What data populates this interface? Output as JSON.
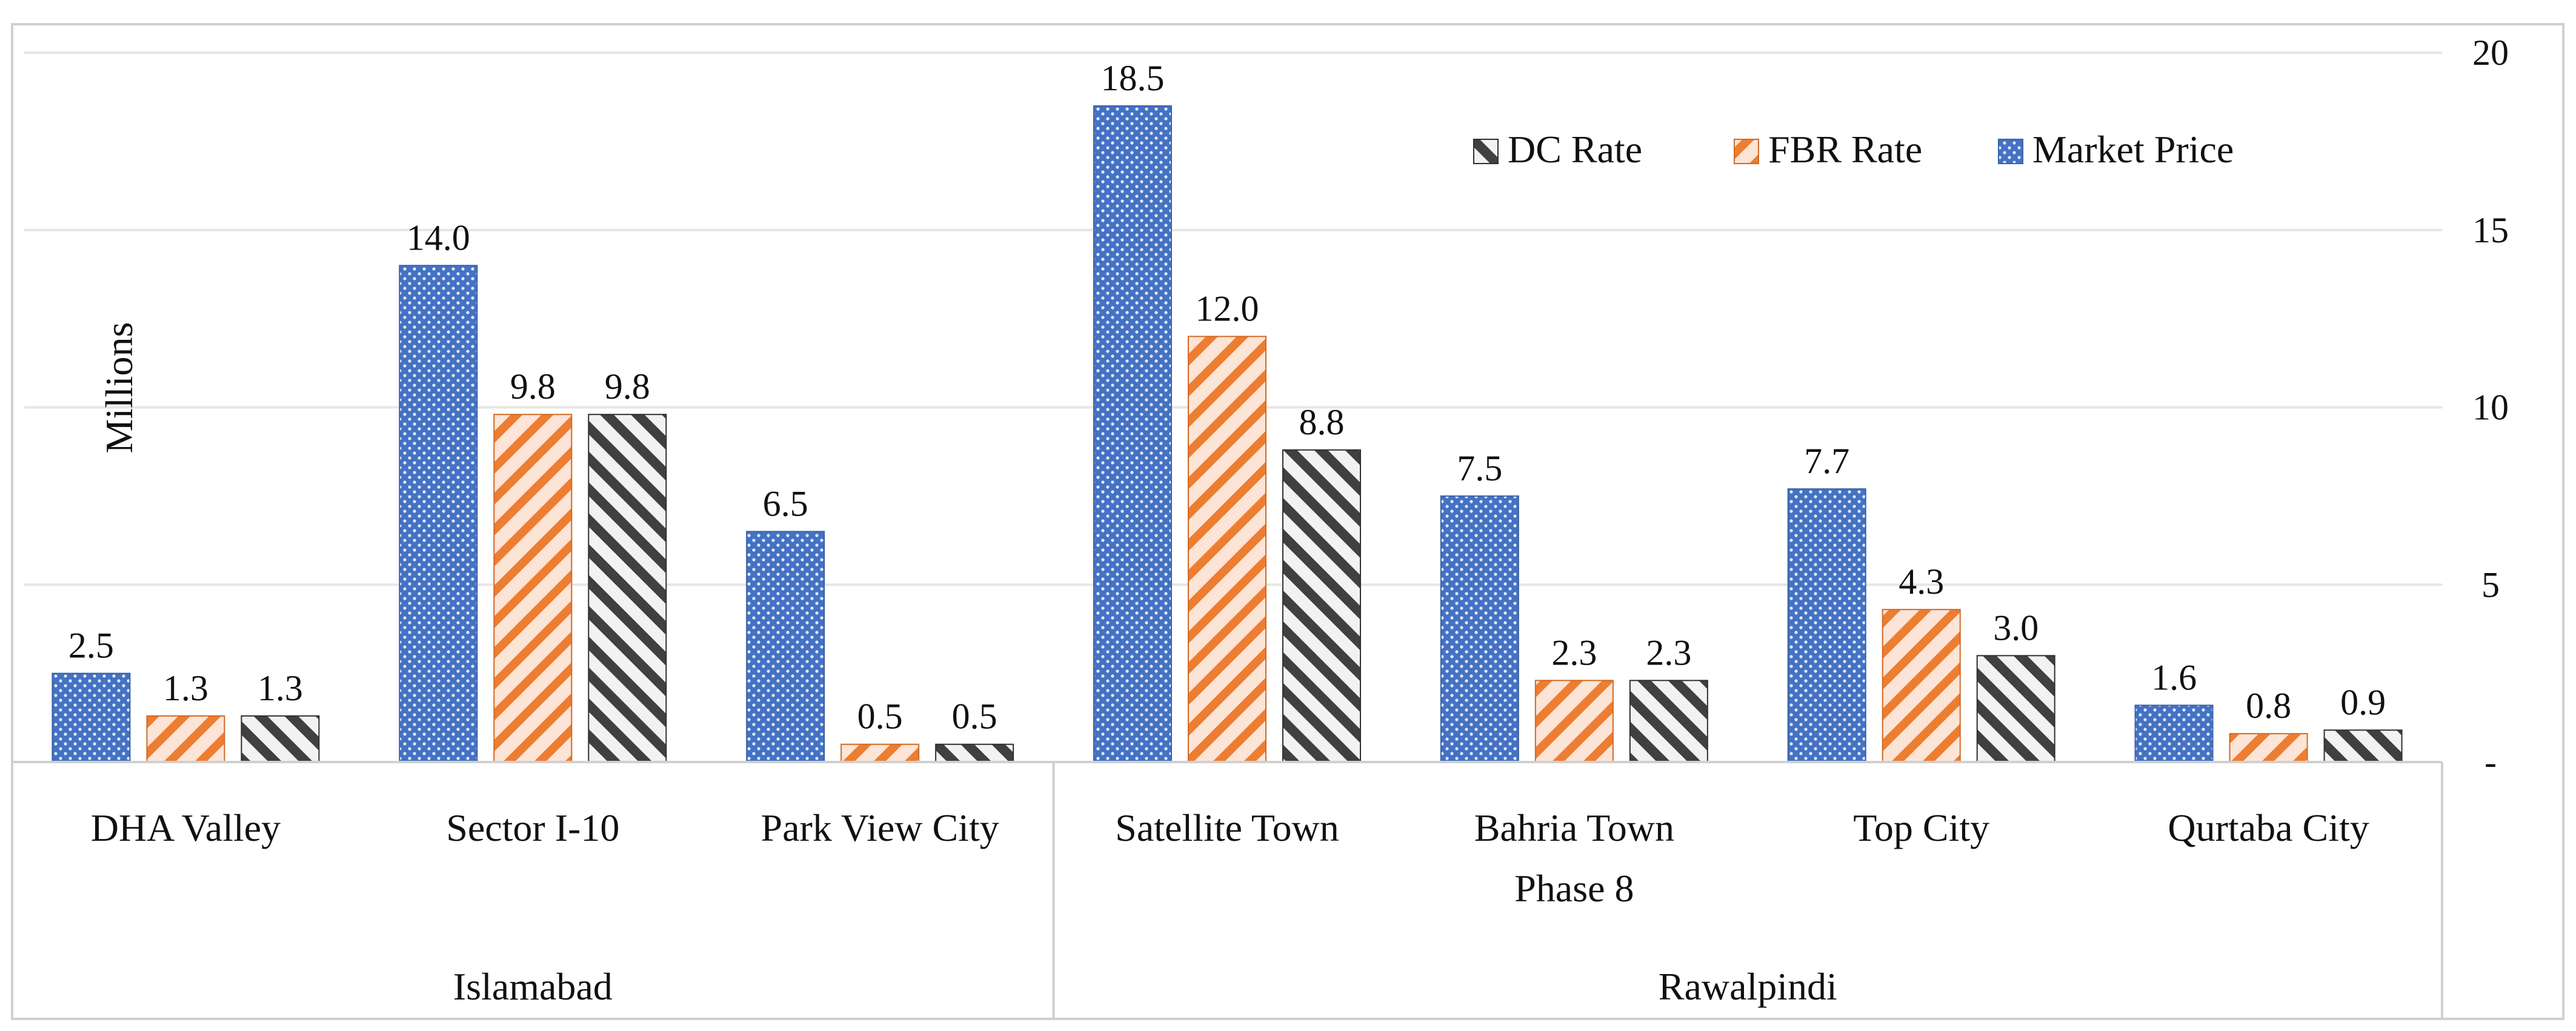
{
  "chart_data": {
    "type": "bar",
    "y_axis_title": "Millions",
    "y_axis_position": "right",
    "ylim": [
      0,
      20
    ],
    "y_ticks": [
      {
        "value": 0,
        "label": "-"
      },
      {
        "value": 5,
        "label": "5"
      },
      {
        "value": 10,
        "label": "10"
      },
      {
        "value": 15,
        "label": "15"
      },
      {
        "value": 20,
        "label": "20"
      }
    ],
    "grid": true,
    "legend_position": "top-right",
    "legend_order": [
      2,
      1,
      0
    ],
    "categories": [
      "DHA Valley",
      "Sector I-10",
      "Park View City",
      "Satellite Town",
      "Bahria Town Phase 8",
      "Top City",
      "Qurtaba City"
    ],
    "category_lines": [
      [
        "DHA Valley"
      ],
      [
        "Sector I-10"
      ],
      [
        "Park View City"
      ],
      [
        "Satellite Town"
      ],
      [
        "Bahria Town",
        "Phase 8"
      ],
      [
        "Top City"
      ],
      [
        "Qurtaba City"
      ]
    ],
    "groups": [
      {
        "name": "Islamabad",
        "count": 3
      },
      {
        "name": "Rawalpindi",
        "count": 4
      }
    ],
    "series": [
      {
        "name": "Market Price",
        "pattern": "dots",
        "color": "#4472C4",
        "values": [
          2.5,
          14.0,
          6.5,
          18.5,
          7.5,
          7.7,
          1.6
        ],
        "labels": [
          "2.5",
          "14.0",
          "6.5",
          "18.5",
          "7.5",
          "7.7",
          "1.6"
        ]
      },
      {
        "name": "FBR Rate",
        "pattern": "stripes",
        "color": "#ED7D31",
        "values": [
          1.3,
          9.8,
          0.5,
          12.0,
          2.3,
          4.3,
          0.8
        ],
        "labels": [
          "1.3",
          "9.8",
          "0.5",
          "12.0",
          "2.3",
          "4.3",
          "0.8"
        ]
      },
      {
        "name": "DC Rate",
        "pattern": "stripes",
        "color": "#404040",
        "values": [
          1.3,
          9.8,
          0.5,
          8.8,
          2.3,
          3.0,
          0.9
        ],
        "labels": [
          "1.3",
          "9.8",
          "0.5",
          "8.8",
          "2.3",
          "3.0",
          "0.9"
        ]
      }
    ]
  }
}
